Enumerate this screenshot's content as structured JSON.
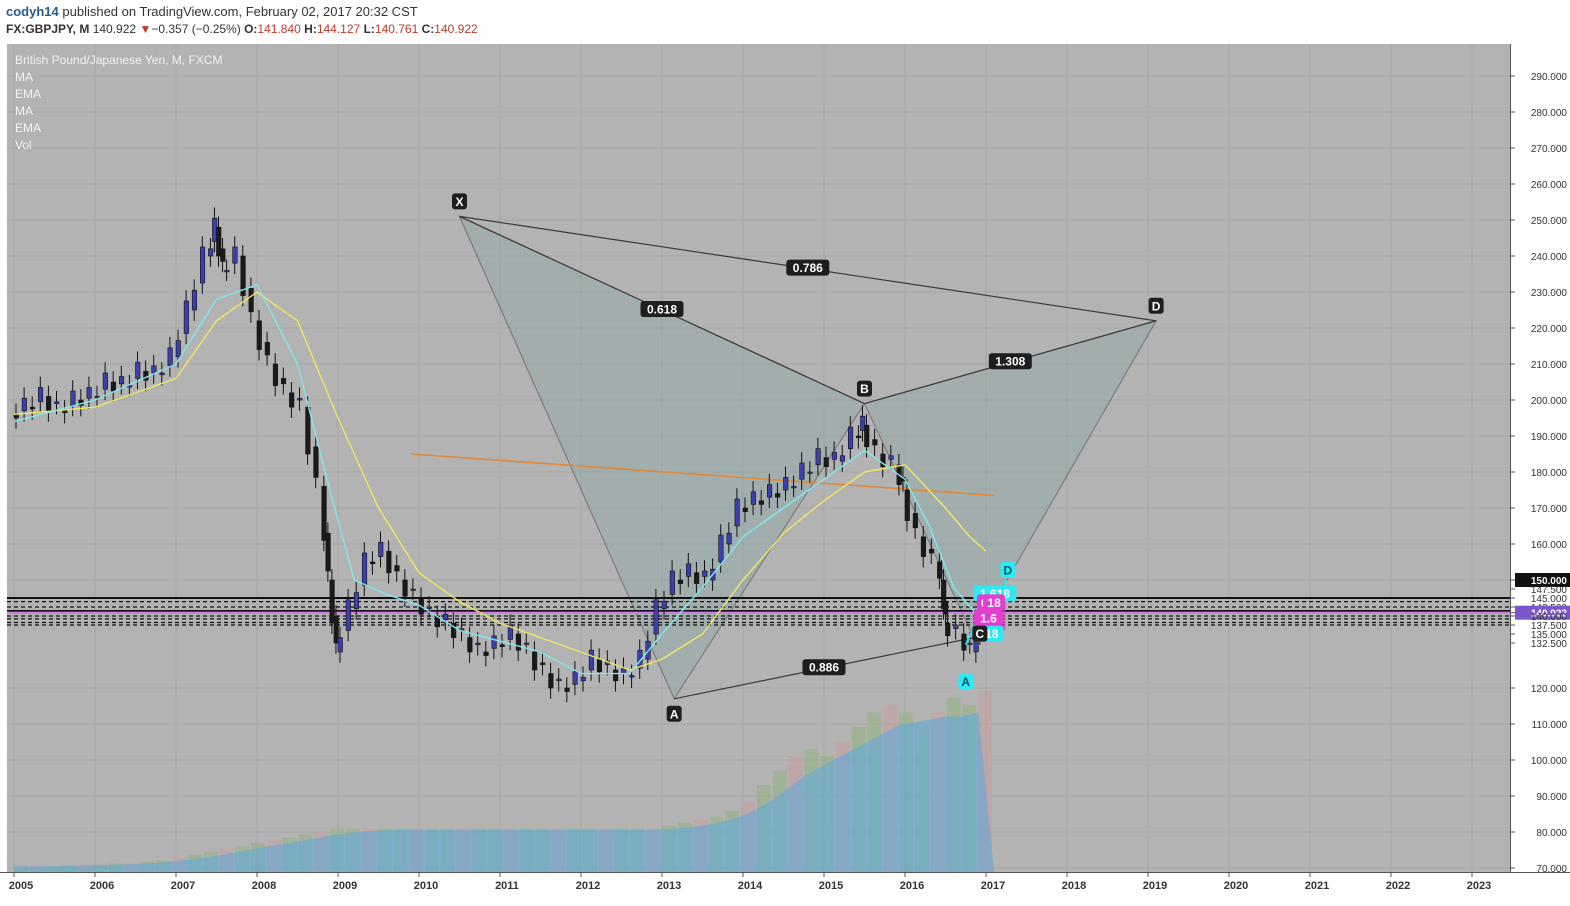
{
  "header": {
    "user": "codyh14",
    "published": "published on TradingView.com, February 02, 2017 20:32 CST",
    "symbol": "FX:GBPJPY, M",
    "last": "140.922",
    "change_arrow": "▼",
    "change": "−0.357 (−0.25%)",
    "o_label": "O:",
    "o_val": "141.840",
    "h_label": "H:",
    "h_val": "144.127",
    "l_label": "L:",
    "l_val": "140.761",
    "c_label": "C:",
    "c_val": "140.922"
  },
  "legend": {
    "title": "British Pound/Japanese Yen, M, FXCM",
    "items": [
      "MA",
      "EMA",
      "MA",
      "EMA",
      "Vol"
    ]
  },
  "colors": {
    "plot_bg": "#b3b3b3",
    "candle_up": "#3c3fae",
    "candle_down": "#1a1a1a",
    "ma_fast": "#7fe8ef",
    "ma_slow": "#f0e660",
    "trendline": "#e08a3c",
    "pattern_fill": "#8fa9a6",
    "highlight_line": "#c77be0",
    "current_price": "#7b57c9",
    "vol_green": "#8fb27f",
    "vol_red": "#c79c9c",
    "vol_ma": "#5ba8dc",
    "cyan_label": "#2ee8f2",
    "magenta_label": "#e23fd0"
  },
  "chart_data": {
    "type": "candlestick",
    "title": "British Pound/Japanese Yen, M, FXCM",
    "x_axis_years": [
      "2005",
      "2006",
      "2007",
      "2008",
      "2009",
      "2010",
      "2011",
      "2012",
      "2013",
      "2014",
      "2015",
      "2016",
      "2017",
      "2018",
      "2019",
      "2020",
      "2021",
      "2022",
      "2023"
    ],
    "y_axis_ticks": [
      "290.000",
      "280.000",
      "270.000",
      "260.000",
      "250.000",
      "240.000",
      "230.000",
      "220.000",
      "210.000",
      "200.000",
      "190.000",
      "180.000",
      "170.000",
      "160.000",
      "150.000",
      "147.500",
      "145.000",
      "142.500",
      "140.922",
      "140.000",
      "137.500",
      "135.000",
      "132.500",
      "120.000",
      "110.000",
      "100.000",
      "90.000",
      "80.000",
      "70.000"
    ],
    "ylim": [
      70,
      295
    ],
    "current_price": "140.922",
    "current_price_value": 140.922,
    "boxed_price": "150.000",
    "boxed_price_value": 150,
    "close_series": [
      {
        "t": 2005.0,
        "v": 196
      },
      {
        "t": 2005.2,
        "v": 198
      },
      {
        "t": 2005.4,
        "v": 201
      },
      {
        "t": 2005.6,
        "v": 197
      },
      {
        "t": 2005.8,
        "v": 200
      },
      {
        "t": 2006.0,
        "v": 201
      },
      {
        "t": 2006.2,
        "v": 205
      },
      {
        "t": 2006.4,
        "v": 204
      },
      {
        "t": 2006.6,
        "v": 208
      },
      {
        "t": 2006.8,
        "v": 207
      },
      {
        "t": 2007.0,
        "v": 212
      },
      {
        "t": 2007.2,
        "v": 225
      },
      {
        "t": 2007.4,
        "v": 240
      },
      {
        "t": 2007.5,
        "v": 248
      },
      {
        "t": 2007.6,
        "v": 236
      },
      {
        "t": 2007.8,
        "v": 240
      },
      {
        "t": 2008.0,
        "v": 222
      },
      {
        "t": 2008.2,
        "v": 210
      },
      {
        "t": 2008.4,
        "v": 202
      },
      {
        "t": 2008.6,
        "v": 198
      },
      {
        "t": 2008.8,
        "v": 176
      },
      {
        "t": 2008.9,
        "v": 150
      },
      {
        "t": 2009.0,
        "v": 130
      },
      {
        "t": 2009.2,
        "v": 142
      },
      {
        "t": 2009.4,
        "v": 155
      },
      {
        "t": 2009.6,
        "v": 158
      },
      {
        "t": 2009.8,
        "v": 150
      },
      {
        "t": 2010.0,
        "v": 145
      },
      {
        "t": 2010.2,
        "v": 140
      },
      {
        "t": 2010.4,
        "v": 138
      },
      {
        "t": 2010.6,
        "v": 134
      },
      {
        "t": 2010.8,
        "v": 130
      },
      {
        "t": 2011.0,
        "v": 132
      },
      {
        "t": 2011.2,
        "v": 135
      },
      {
        "t": 2011.4,
        "v": 130
      },
      {
        "t": 2011.6,
        "v": 124
      },
      {
        "t": 2011.8,
        "v": 120
      },
      {
        "t": 2012.0,
        "v": 122
      },
      {
        "t": 2012.2,
        "v": 128
      },
      {
        "t": 2012.4,
        "v": 125
      },
      {
        "t": 2012.6,
        "v": 123
      },
      {
        "t": 2012.8,
        "v": 128
      },
      {
        "t": 2013.0,
        "v": 142
      },
      {
        "t": 2013.2,
        "v": 150
      },
      {
        "t": 2013.4,
        "v": 152
      },
      {
        "t": 2013.6,
        "v": 150
      },
      {
        "t": 2013.8,
        "v": 160
      },
      {
        "t": 2014.0,
        "v": 170
      },
      {
        "t": 2014.2,
        "v": 172
      },
      {
        "t": 2014.4,
        "v": 174
      },
      {
        "t": 2014.6,
        "v": 176
      },
      {
        "t": 2014.8,
        "v": 180
      },
      {
        "t": 2015.0,
        "v": 184
      },
      {
        "t": 2015.2,
        "v": 183
      },
      {
        "t": 2015.4,
        "v": 190
      },
      {
        "t": 2015.5,
        "v": 193
      },
      {
        "t": 2015.7,
        "v": 185
      },
      {
        "t": 2015.9,
        "v": 182
      },
      {
        "t": 2016.0,
        "v": 175
      },
      {
        "t": 2016.2,
        "v": 162
      },
      {
        "t": 2016.4,
        "v": 155
      },
      {
        "t": 2016.45,
        "v": 150
      },
      {
        "t": 2016.5,
        "v": 138
      },
      {
        "t": 2016.7,
        "v": 135
      },
      {
        "t": 2016.85,
        "v": 130
      },
      {
        "t": 2016.95,
        "v": 140
      },
      {
        "t": 2017.05,
        "v": 141
      }
    ],
    "ma_fast_series": [
      {
        "t": 2005.0,
        "v": 194
      },
      {
        "t": 2006.0,
        "v": 200
      },
      {
        "t": 2007.0,
        "v": 210
      },
      {
        "t": 2007.5,
        "v": 228
      },
      {
        "t": 2008.0,
        "v": 232
      },
      {
        "t": 2008.5,
        "v": 210
      },
      {
        "t": 2008.9,
        "v": 175
      },
      {
        "t": 2009.2,
        "v": 150
      },
      {
        "t": 2009.6,
        "v": 146
      },
      {
        "t": 2010.0,
        "v": 143
      },
      {
        "t": 2010.5,
        "v": 136
      },
      {
        "t": 2011.0,
        "v": 133
      },
      {
        "t": 2011.5,
        "v": 130
      },
      {
        "t": 2012.0,
        "v": 124
      },
      {
        "t": 2012.6,
        "v": 124
      },
      {
        "t": 2013.0,
        "v": 135
      },
      {
        "t": 2013.5,
        "v": 148
      },
      {
        "t": 2014.0,
        "v": 162
      },
      {
        "t": 2014.5,
        "v": 170
      },
      {
        "t": 2015.0,
        "v": 178
      },
      {
        "t": 2015.5,
        "v": 186
      },
      {
        "t": 2016.0,
        "v": 178
      },
      {
        "t": 2016.3,
        "v": 165
      },
      {
        "t": 2016.6,
        "v": 148
      },
      {
        "t": 2016.9,
        "v": 140
      },
      {
        "t": 2017.0,
        "v": 141
      }
    ],
    "ma_slow_series": [
      {
        "t": 2005.0,
        "v": 196
      },
      {
        "t": 2006.0,
        "v": 198
      },
      {
        "t": 2007.0,
        "v": 206
      },
      {
        "t": 2007.5,
        "v": 222
      },
      {
        "t": 2008.0,
        "v": 230
      },
      {
        "t": 2008.5,
        "v": 222
      },
      {
        "t": 2009.0,
        "v": 195
      },
      {
        "t": 2009.5,
        "v": 170
      },
      {
        "t": 2010.0,
        "v": 152
      },
      {
        "t": 2010.5,
        "v": 144
      },
      {
        "t": 2011.0,
        "v": 138
      },
      {
        "t": 2011.5,
        "v": 134
      },
      {
        "t": 2012.0,
        "v": 130
      },
      {
        "t": 2012.6,
        "v": 125
      },
      {
        "t": 2013.0,
        "v": 128
      },
      {
        "t": 2013.5,
        "v": 135
      },
      {
        "t": 2014.0,
        "v": 150
      },
      {
        "t": 2014.5,
        "v": 163
      },
      {
        "t": 2015.0,
        "v": 172
      },
      {
        "t": 2015.5,
        "v": 180
      },
      {
        "t": 2016.0,
        "v": 182
      },
      {
        "t": 2016.5,
        "v": 170
      },
      {
        "t": 2016.8,
        "v": 162
      },
      {
        "t": 2017.0,
        "v": 158
      }
    ],
    "trendline": {
      "from": {
        "t": 2009.9,
        "v": 185
      },
      "to": {
        "t": 2017.1,
        "v": 173.5
      }
    },
    "horizontal_levels": [
      145.0,
      144.0,
      142.5,
      141.4,
      140.9,
      140.0,
      139.2,
      138.2,
      137.5
    ],
    "volume_bars": [
      4,
      4,
      4,
      5,
      5,
      5,
      6,
      6,
      7,
      8,
      10,
      12,
      14,
      16,
      18,
      20,
      22,
      24,
      26,
      28,
      30,
      30,
      30,
      30,
      30,
      30,
      30,
      30,
      30,
      30,
      30,
      30,
      30,
      30,
      30,
      30,
      30,
      30,
      30,
      30,
      30,
      32,
      34,
      36,
      38,
      42,
      48,
      60,
      70,
      80,
      85,
      80,
      90,
      100,
      110,
      115,
      110,
      100,
      110,
      120,
      115,
      125
    ],
    "harmonic_pattern": {
      "points": [
        {
          "label": "X",
          "t": 2010.5,
          "v": 251
        },
        {
          "label": "A",
          "t": 2013.15,
          "v": 117
        },
        {
          "label": "B",
          "t": 2015.5,
          "v": 199
        },
        {
          "label": "C",
          "t": 2016.85,
          "v": 134
        },
        {
          "label": "D",
          "t": 2019.1,
          "v": 222
        }
      ],
      "ratios": [
        {
          "text": "0.618",
          "between": "X-B"
        },
        {
          "text": "0.786",
          "between": "X-D"
        },
        {
          "text": "1.308",
          "between": "B-D"
        },
        {
          "text": "0.886",
          "between": "A-C"
        }
      ]
    },
    "small_pattern": {
      "labels": [
        "A",
        "D",
        "1.618",
        "0",
        "18",
        "1.6",
        "618"
      ]
    }
  }
}
